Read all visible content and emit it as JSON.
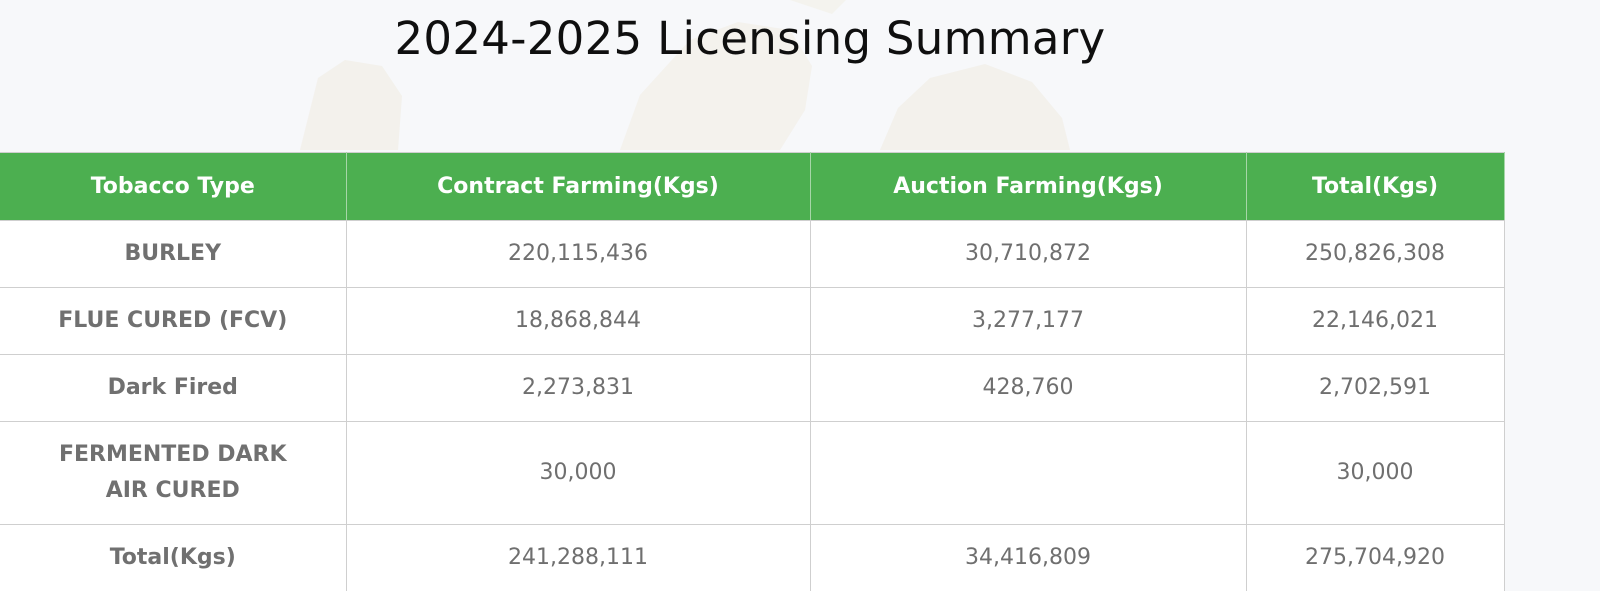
{
  "page": {
    "title": "2024-2025 Licensing Summary"
  },
  "table": {
    "headers": [
      "Tobacco Type",
      "Contract Farming(Kgs)",
      "Auction Farming(Kgs)",
      "Total(Kgs)"
    ],
    "rows": [
      {
        "type": "BURLEY",
        "contract": "220,115,436",
        "auction": "30,710,872",
        "total": "250,826,308"
      },
      {
        "type": "FLUE CURED (FCV)",
        "contract": "18,868,844",
        "auction": "3,277,177",
        "total": "22,146,021"
      },
      {
        "type": "Dark Fired",
        "contract": "2,273,831",
        "auction": "428,760",
        "total": "2,702,591"
      },
      {
        "type": "FERMENTED DARK AIR CURED",
        "contract": "30,000",
        "auction": "",
        "total": "30,000"
      },
      {
        "type": "Total(Kgs)",
        "contract": "241,288,111",
        "auction": "34,416,809",
        "total": "275,704,920"
      }
    ]
  },
  "colors": {
    "header_background": "#4caf50",
    "header_text": "#ffffff",
    "cell_text": "#6f6f6f",
    "grid_line": "#cfcfcf",
    "page_background": "#f7f8fa"
  },
  "icons": {
    "background": "map-watermark"
  }
}
